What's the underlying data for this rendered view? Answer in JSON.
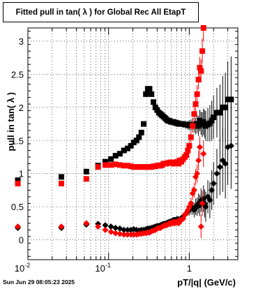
{
  "stamp": "Sun Jun 29 08:05:23 2025",
  "chart_data": {
    "type": "scatter",
    "title": "Fitted pull in tan( λ ) for Global Rec All EtapT",
    "xlabel": "pT/|q| (GeV/c)",
    "ylabel": "pull in tan( λ )",
    "x_scale": "log",
    "xlim": [
      0.01,
      4.0
    ],
    "ylim": [
      -0.3,
      3.2
    ],
    "x_tick_labels": [
      "10^-2",
      "10^-1",
      "1"
    ],
    "y_ticks": [
      0,
      0.5,
      1,
      1.5,
      2,
      2.5,
      3
    ],
    "grid": true,
    "series": [
      {
        "color": "#000000",
        "marker": "square",
        "x": [
          0.0075,
          0.026,
          0.053,
          0.074,
          0.091,
          0.107,
          0.122,
          0.138,
          0.155,
          0.172,
          0.189,
          0.205,
          0.222,
          0.238,
          0.255,
          0.272,
          0.29,
          0.306,
          0.322,
          0.34,
          0.36,
          0.38,
          0.4,
          0.42,
          0.44,
          0.46,
          0.48,
          0.5,
          0.52,
          0.54,
          0.56,
          0.58,
          0.6,
          0.62,
          0.64,
          0.66,
          0.68,
          0.7,
          0.72,
          0.74,
          0.76,
          0.8,
          0.84,
          0.88,
          0.92,
          0.96,
          1.0,
          1.05,
          1.1,
          1.15,
          1.2,
          1.25,
          1.3,
          1.35,
          1.4,
          1.45,
          1.5,
          1.55,
          1.6,
          1.7,
          1.8,
          1.9,
          2.0,
          2.2,
          2.4,
          2.6,
          2.8,
          3.0,
          3.3
        ],
        "y": [
          0.9,
          0.95,
          1.03,
          1.12,
          1.18,
          1.22,
          1.27,
          1.3,
          1.35,
          1.38,
          1.42,
          1.47,
          1.5,
          1.55,
          1.62,
          1.75,
          2.2,
          2.28,
          2.28,
          2.2,
          2.08,
          2.0,
          1.96,
          1.92,
          1.9,
          1.88,
          1.86,
          1.84,
          1.82,
          1.8,
          1.8,
          1.79,
          1.78,
          1.78,
          1.78,
          1.77,
          1.77,
          1.76,
          1.76,
          1.75,
          1.75,
          1.75,
          1.75,
          1.74,
          1.74,
          1.73,
          1.73,
          1.73,
          1.74,
          1.73,
          1.72,
          1.75,
          1.72,
          1.8,
          1.76,
          1.74,
          1.78,
          1.75,
          1.72,
          1.74,
          1.76,
          1.8,
          1.85,
          1.92,
          1.92,
          2.0,
          2.0,
          2.12,
          2.12
        ]
      },
      {
        "color": "#ff0000",
        "marker": "square",
        "x": [
          0.0075,
          0.026,
          0.053,
          0.074,
          0.091,
          0.107,
          0.122,
          0.138,
          0.155,
          0.172,
          0.189,
          0.205,
          0.222,
          0.238,
          0.255,
          0.272,
          0.29,
          0.306,
          0.322,
          0.34,
          0.36,
          0.38,
          0.4,
          0.42,
          0.44,
          0.46,
          0.48,
          0.5,
          0.52,
          0.54,
          0.56,
          0.58,
          0.6,
          0.62,
          0.64,
          0.66,
          0.68,
          0.7,
          0.72,
          0.74,
          0.76,
          0.8,
          0.84,
          0.88,
          0.92,
          0.96,
          1.0,
          1.05,
          1.1,
          1.15,
          1.2,
          1.25,
          1.3,
          1.35,
          1.4,
          1.45,
          1.5
        ],
        "y": [
          0.85,
          0.85,
          0.92,
          1.1,
          1.13,
          1.13,
          1.14,
          1.13,
          1.12,
          1.12,
          1.11,
          1.1,
          1.1,
          1.1,
          1.1,
          1.1,
          1.1,
          1.1,
          1.1,
          1.1,
          1.11,
          1.11,
          1.12,
          1.12,
          1.12,
          1.13,
          1.15,
          1.15,
          1.15,
          1.16,
          1.16,
          1.17,
          1.16,
          1.17,
          1.15,
          1.17,
          1.17,
          1.16,
          1.18,
          1.15,
          1.2,
          1.18,
          1.22,
          1.25,
          1.28,
          1.35,
          1.42,
          1.55,
          1.72,
          1.9,
          2.05,
          2.2,
          2.42,
          2.6,
          2.55,
          2.85,
          3.2
        ]
      },
      {
        "color": "#000000",
        "marker": "diamond",
        "x": [
          0.0075,
          0.026,
          0.053,
          0.074,
          0.091,
          0.107,
          0.122,
          0.138,
          0.155,
          0.172,
          0.189,
          0.205,
          0.222,
          0.238,
          0.255,
          0.272,
          0.29,
          0.306,
          0.322,
          0.34,
          0.36,
          0.38,
          0.4,
          0.42,
          0.44,
          0.46,
          0.48,
          0.5,
          0.52,
          0.54,
          0.56,
          0.58,
          0.6,
          0.62,
          0.64,
          0.66,
          0.68,
          0.7,
          0.72,
          0.74,
          0.76,
          0.8,
          0.84,
          0.88,
          0.92,
          0.96,
          1.0,
          1.05,
          1.1,
          1.15,
          1.2,
          1.25,
          1.3,
          1.35,
          1.4,
          1.45,
          1.5,
          1.55,
          1.6,
          1.7,
          1.8,
          1.9,
          2.0,
          2.2,
          2.4,
          2.6,
          2.8,
          3.0,
          3.3
        ],
        "y": [
          0.18,
          0.18,
          0.23,
          0.24,
          0.22,
          0.2,
          0.18,
          0.17,
          0.15,
          0.15,
          0.15,
          0.16,
          0.15,
          0.14,
          0.15,
          0.15,
          0.16,
          0.17,
          0.17,
          0.18,
          0.19,
          0.2,
          0.21,
          0.21,
          0.22,
          0.23,
          0.24,
          0.24,
          0.25,
          0.26,
          0.27,
          0.27,
          0.28,
          0.29,
          0.3,
          0.3,
          0.3,
          0.31,
          0.31,
          0.31,
          0.3,
          0.33,
          0.35,
          0.38,
          0.4,
          0.43,
          0.45,
          0.47,
          0.48,
          0.45,
          0.5,
          0.5,
          0.55,
          0.52,
          0.6,
          0.55,
          0.62,
          0.55,
          0.5,
          0.65,
          0.6,
          0.75,
          0.85,
          1.0,
          1.1,
          1.2,
          1.15,
          1.4,
          1.42
        ]
      },
      {
        "color": "#ff0000",
        "marker": "diamond",
        "x": [
          0.0075,
          0.026,
          0.053,
          0.074,
          0.091,
          0.107,
          0.122,
          0.138,
          0.155,
          0.172,
          0.189,
          0.205,
          0.222,
          0.238,
          0.255,
          0.272,
          0.29,
          0.306,
          0.322,
          0.34,
          0.36,
          0.38,
          0.4,
          0.42,
          0.44,
          0.46,
          0.48,
          0.5,
          0.52,
          0.54,
          0.56,
          0.58,
          0.6,
          0.62,
          0.64,
          0.66,
          0.68,
          0.7,
          0.72,
          0.74,
          0.76,
          0.8,
          0.84,
          0.88,
          0.92,
          0.96,
          1.0,
          1.05,
          1.1,
          1.15,
          1.2,
          1.25,
          1.3,
          1.35,
          1.4,
          1.45,
          1.5
        ],
        "y": [
          0.2,
          0.2,
          0.25,
          0.2,
          0.15,
          0.12,
          0.1,
          0.09,
          0.08,
          0.08,
          0.08,
          0.08,
          0.08,
          0.09,
          0.09,
          0.1,
          0.1,
          0.11,
          0.11,
          0.13,
          0.14,
          0.15,
          0.17,
          0.18,
          0.18,
          0.2,
          0.21,
          0.22,
          0.22,
          0.23,
          0.25,
          0.24,
          0.26,
          0.25,
          0.27,
          0.25,
          0.27,
          0.26,
          0.28,
          0.25,
          0.3,
          0.3,
          0.32,
          0.38,
          0.4,
          0.45,
          0.5,
          0.55,
          0.7,
          0.75,
          0.95,
          1.0,
          1.2,
          1.4,
          0.2,
          0.55,
          1.3
        ]
      }
    ]
  }
}
